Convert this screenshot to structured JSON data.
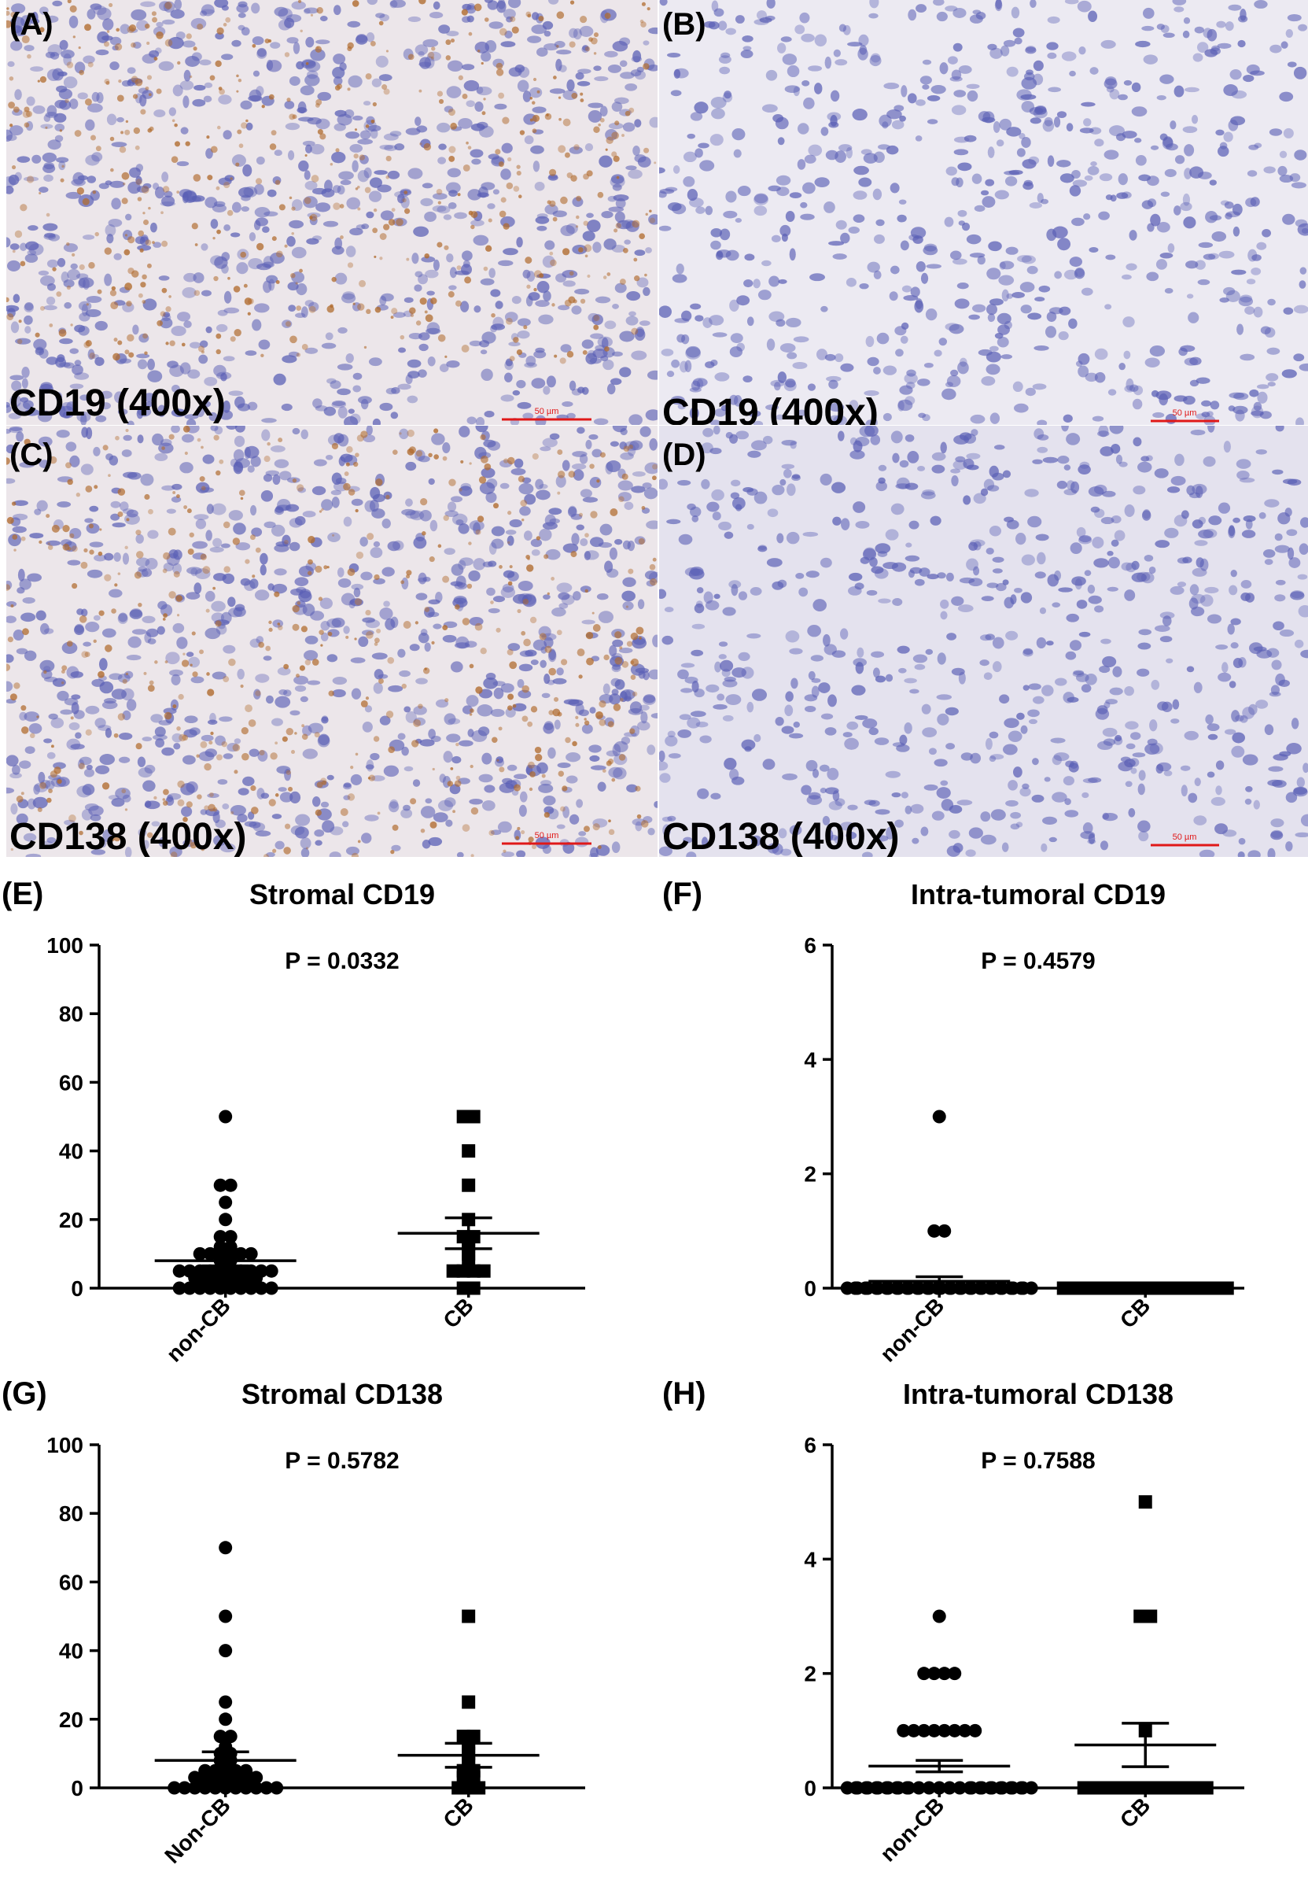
{
  "micrographs": [
    {
      "letter": "(A)",
      "stain": "CD19 (400x)",
      "scale": "50 µm",
      "tone": "brown-dense"
    },
    {
      "letter": "(B)",
      "stain": "CD19 (400x)",
      "scale": "50 µm",
      "tone": "blue"
    },
    {
      "letter": "(C)",
      "stain": "CD138 (400x)",
      "scale": "50 µm",
      "tone": "brown-mesh"
    },
    {
      "letter": "(D)",
      "stain": "CD138 (400x)",
      "scale": "50 µm",
      "tone": "blue-pale"
    }
  ],
  "colors": {
    "marker": "#000000",
    "scale_bar": "#e01818",
    "hematoxylin": "#5a5fb5",
    "dab": "#b06a2c"
  },
  "chart_data": [
    {
      "panel": "(E)",
      "type": "scatter",
      "title": "Stromal CD19",
      "pvalue": "P = 0.0332",
      "ylim": [
        0,
        100
      ],
      "yticks": [
        0,
        20,
        40,
        60,
        80,
        100
      ],
      "categories": [
        "non-CB",
        "CB"
      ],
      "series": [
        {
          "marker": "circle",
          "values": [
            50,
            30,
            30,
            25,
            20,
            15,
            15,
            12,
            12,
            10,
            10,
            10,
            10,
            10,
            10,
            8,
            8,
            7,
            5,
            5,
            5,
            5,
            5,
            5,
            5,
            5,
            5,
            5,
            3,
            3,
            3,
            3,
            3,
            3,
            3,
            2,
            2,
            2,
            2,
            2,
            1,
            1,
            1,
            1,
            0,
            0,
            0,
            0,
            0,
            0,
            0,
            0,
            0,
            0
          ],
          "mean": 8,
          "sem": 1.5
        },
        {
          "marker": "square",
          "values": [
            50,
            50,
            40,
            30,
            20,
            15,
            15,
            13,
            12,
            10,
            8,
            5,
            5,
            5,
            5,
            0,
            0
          ],
          "mean": 16,
          "sem": 4.5
        }
      ]
    },
    {
      "panel": "(F)",
      "type": "scatter",
      "title": "Intra-tumoral CD19",
      "pvalue": "P = 0.4579",
      "ylim": [
        0,
        6
      ],
      "yticks": [
        0,
        2,
        4,
        6
      ],
      "categories": [
        "non-CB",
        "CB"
      ],
      "series": [
        {
          "marker": "circle",
          "values": [
            3,
            1,
            1,
            0,
            0,
            0,
            0,
            0,
            0,
            0,
            0,
            0,
            0,
            0,
            0,
            0,
            0,
            0,
            0,
            0,
            0,
            0,
            0,
            0,
            0,
            0,
            0,
            0,
            0,
            0,
            0,
            0,
            0,
            0,
            0,
            0,
            0,
            0,
            0,
            0,
            0,
            0,
            0,
            0
          ],
          "mean": 0.12,
          "sem": 0.08
        },
        {
          "marker": "square",
          "values": [
            0,
            0,
            0,
            0,
            0,
            0,
            0,
            0,
            0,
            0,
            0,
            0,
            0,
            0,
            0,
            0,
            0
          ],
          "mean": 0,
          "sem": 0
        }
      ]
    },
    {
      "panel": "(G)",
      "type": "scatter",
      "title": "Stromal CD138",
      "pvalue": "P = 0.5782",
      "ylim": [
        0,
        100
      ],
      "yticks": [
        0,
        20,
        40,
        60,
        80,
        100
      ],
      "categories": [
        "Non-CB",
        "CB"
      ],
      "series": [
        {
          "marker": "circle",
          "values": [
            70,
            50,
            40,
            25,
            20,
            15,
            15,
            12,
            10,
            10,
            8,
            8,
            7,
            5,
            5,
            5,
            5,
            5,
            3,
            3,
            3,
            3,
            3,
            3,
            3,
            2,
            2,
            2,
            2,
            2,
            1,
            1,
            1,
            1,
            1,
            0,
            0,
            0,
            0,
            0,
            0,
            0,
            0,
            0,
            0,
            0
          ],
          "mean": 8,
          "sem": 2.5
        },
        {
          "marker": "square",
          "values": [
            50,
            25,
            15,
            15,
            13,
            12,
            10,
            8,
            7,
            5,
            5,
            3,
            3,
            2,
            0,
            0,
            0
          ],
          "mean": 9.5,
          "sem": 3.5
        }
      ]
    },
    {
      "panel": "(H)",
      "type": "scatter",
      "title": "Intra-tumoral CD138",
      "pvalue": "P = 0.7588",
      "ylim": [
        0,
        6
      ],
      "yticks": [
        0,
        2,
        4,
        6
      ],
      "categories": [
        "non-CB",
        "CB"
      ],
      "series": [
        {
          "marker": "circle",
          "values": [
            3,
            2,
            2,
            2,
            2,
            1,
            1,
            1,
            1,
            1,
            1,
            1,
            1,
            0,
            0,
            0,
            0,
            0,
            0,
            0,
            0,
            0,
            0,
            0,
            0,
            0,
            0,
            0,
            0,
            0,
            0,
            0,
            0,
            0,
            0,
            0,
            0,
            0,
            0,
            0,
            0,
            0,
            0,
            0
          ],
          "mean": 0.38,
          "sem": 0.1
        },
        {
          "marker": "square",
          "values": [
            5,
            3,
            3,
            1,
            0,
            0,
            0,
            0,
            0,
            0,
            0,
            0,
            0,
            0,
            0,
            0,
            0
          ],
          "mean": 0.75,
          "sem": 0.38
        }
      ]
    }
  ]
}
